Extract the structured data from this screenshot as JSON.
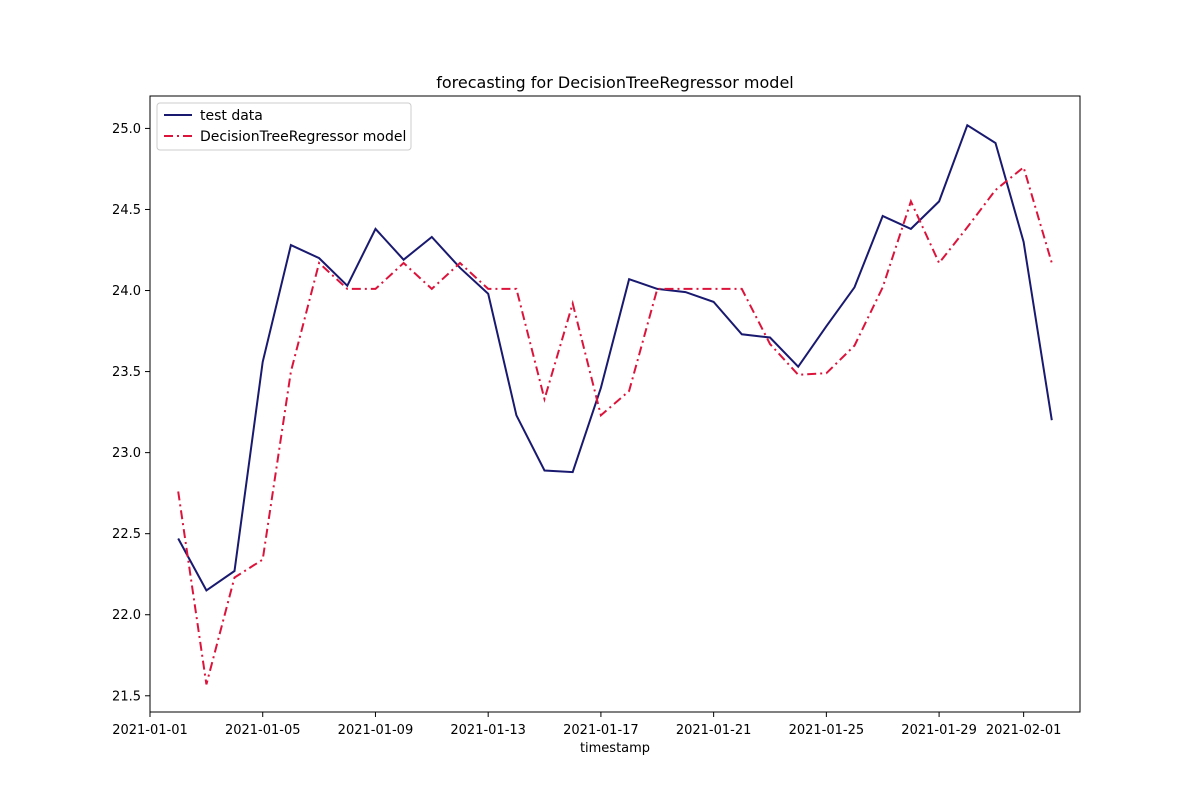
{
  "chart_data": {
    "type": "line",
    "title": "forecasting for DecisionTreeRegressor model",
    "xlabel": "timestamp",
    "ylabel": "",
    "x": [
      "2021-01-02",
      "2021-01-03",
      "2021-01-04",
      "2021-01-05",
      "2021-01-06",
      "2021-01-07",
      "2021-01-08",
      "2021-01-09",
      "2021-01-10",
      "2021-01-11",
      "2021-01-12",
      "2021-01-13",
      "2021-01-14",
      "2021-01-15",
      "2021-01-16",
      "2021-01-17",
      "2021-01-18",
      "2021-01-19",
      "2021-01-20",
      "2021-01-21",
      "2021-01-22",
      "2021-01-23",
      "2021-01-24",
      "2021-01-25",
      "2021-01-26",
      "2021-01-27",
      "2021-01-28",
      "2021-01-29",
      "2021-01-30",
      "2021-01-31",
      "2021-02-01",
      "2021-02-02"
    ],
    "series": [
      {
        "name": "test data",
        "color": "#191970",
        "dash": "solid",
        "values": [
          22.47,
          22.15,
          22.27,
          23.56,
          24.28,
          24.2,
          24.03,
          24.38,
          24.19,
          24.33,
          24.14,
          23.98,
          23.23,
          22.89,
          22.88,
          23.4,
          24.07,
          24.01,
          23.99,
          23.93,
          23.73,
          23.71,
          23.53,
          23.78,
          24.02,
          24.46,
          24.38,
          24.55,
          25.02,
          24.91,
          24.3,
          23.2
        ]
      },
      {
        "name": "DecisionTreeRegressor model",
        "color": "#dc143c",
        "dash": "dashdot",
        "values": [
          22.76,
          21.57,
          22.23,
          22.34,
          23.5,
          24.17,
          24.01,
          24.01,
          24.17,
          24.01,
          24.17,
          24.01,
          24.01,
          23.33,
          23.92,
          23.23,
          23.38,
          24.01,
          24.01,
          24.01,
          24.01,
          23.67,
          23.48,
          23.49,
          23.66,
          24.02,
          24.55,
          24.17,
          24.39,
          24.62,
          24.76,
          24.17
        ]
      }
    ],
    "xlim": [
      "2021-01-01",
      "2021-02-03"
    ],
    "ylim": [
      21.4,
      25.2
    ],
    "xticks": [
      "2021-01-01",
      "2021-01-05",
      "2021-01-09",
      "2021-01-13",
      "2021-01-17",
      "2021-01-21",
      "2021-01-25",
      "2021-01-29",
      "2021-02-01"
    ],
    "yticks": [
      21.5,
      22.0,
      22.5,
      23.0,
      23.5,
      24.0,
      24.5,
      25.0
    ],
    "ytick_labels": [
      "21.5",
      "22.0",
      "22.5",
      "23.0",
      "23.5",
      "24.0",
      "24.5",
      "25.0"
    ],
    "grid": false,
    "legend": "upper-left"
  }
}
